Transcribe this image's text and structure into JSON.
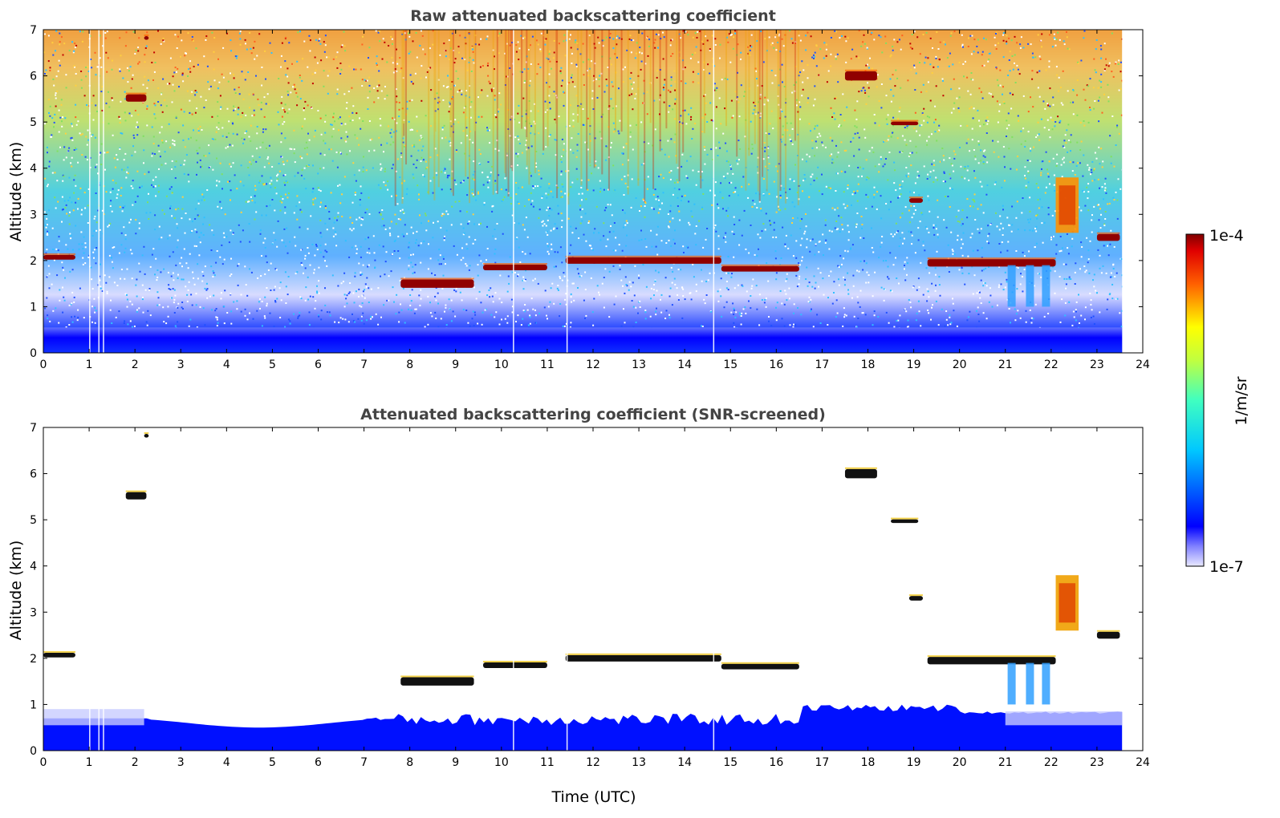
{
  "chart_data": [
    {
      "type": "heatmap",
      "title": "Raw attenuated backscattering coefficient",
      "xlabel": "",
      "ylabel": "Altitude (km)",
      "xlim": [
        0,
        24
      ],
      "ylim": [
        0,
        7
      ],
      "x_ticks": [
        "0",
        "1",
        "2",
        "3",
        "4",
        "5",
        "6",
        "7",
        "8",
        "9",
        "10",
        "11",
        "12",
        "13",
        "14",
        "15",
        "16",
        "17",
        "18",
        "19",
        "20",
        "21",
        "22",
        "23",
        "24"
      ],
      "y_ticks": [
        "0",
        "1",
        "2",
        "3",
        "4",
        "5",
        "6",
        "7"
      ],
      "data_x_extent": [
        0,
        23.55
      ],
      "noise_floor_note": "",
      "features": [
        {
          "name": "",
          "t_start": 0.0,
          "t_end": 0.7,
          "alt": 2.07,
          "thick": 0.1,
          "level": 1.0
        },
        {
          "name": "",
          "t_start": 1.8,
          "t_end": 2.25,
          "alt": 5.52,
          "thick": 0.16,
          "level": 1.0
        },
        {
          "name": "",
          "t_start": 2.2,
          "t_end": 2.3,
          "alt": 6.82,
          "thick": 0.08,
          "level": 1.0
        },
        {
          "name": "",
          "t_start": 7.8,
          "t_end": 9.4,
          "alt": 1.5,
          "thick": 0.18,
          "level": 1.0
        },
        {
          "name": "",
          "t_start": 9.6,
          "t_end": 11.0,
          "alt": 1.85,
          "thick": 0.12,
          "level": 1.0
        },
        {
          "name": "",
          "t_start": 11.4,
          "t_end": 14.8,
          "alt": 2.0,
          "thick": 0.14,
          "level": 1.0
        },
        {
          "name": "",
          "t_start": 14.8,
          "t_end": 16.5,
          "alt": 1.82,
          "thick": 0.12,
          "level": 1.0
        },
        {
          "name": "",
          "t_start": 17.5,
          "t_end": 18.2,
          "alt": 6.0,
          "thick": 0.2,
          "level": 1.0
        },
        {
          "name": "",
          "t_start": 18.5,
          "t_end": 19.1,
          "alt": 4.97,
          "thick": 0.08,
          "level": 1.0
        },
        {
          "name": "",
          "t_start": 18.9,
          "t_end": 19.2,
          "alt": 3.3,
          "thick": 0.1,
          "level": 1.0
        },
        {
          "name": "",
          "t_start": 19.3,
          "t_end": 22.1,
          "alt": 1.95,
          "thick": 0.16,
          "level": 1.0
        },
        {
          "name": "",
          "t_start": 22.1,
          "t_end": 22.6,
          "alt": 3.2,
          "thick": 1.2,
          "level": 0.8
        },
        {
          "name": "",
          "t_start": 23.0,
          "t_end": 23.5,
          "alt": 2.5,
          "thick": 0.15,
          "level": 1.0
        }
      ]
    },
    {
      "type": "heatmap",
      "title": "Attenuated backscattering coefficient (SNR-screened)",
      "xlabel": "Time (UTC)",
      "ylabel": "Altitude (km)",
      "xlim": [
        0,
        24
      ],
      "ylim": [
        0,
        7
      ],
      "x_ticks": [
        "0",
        "1",
        "2",
        "3",
        "4",
        "5",
        "6",
        "7",
        "8",
        "9",
        "10",
        "11",
        "12",
        "13",
        "14",
        "15",
        "16",
        "17",
        "18",
        "19",
        "20",
        "21",
        "22",
        "23",
        "24"
      ],
      "y_ticks": [
        "0",
        "1",
        "2",
        "3",
        "4",
        "5",
        "6",
        "7"
      ],
      "data_x_extent": [
        0,
        23.55
      ]
    }
  ],
  "colorbar": {
    "label": "1/m/sr",
    "max_label": "1e-4",
    "min_label": "1e-7",
    "scale": "log",
    "range": [
      1e-07,
      0.0001
    ]
  }
}
